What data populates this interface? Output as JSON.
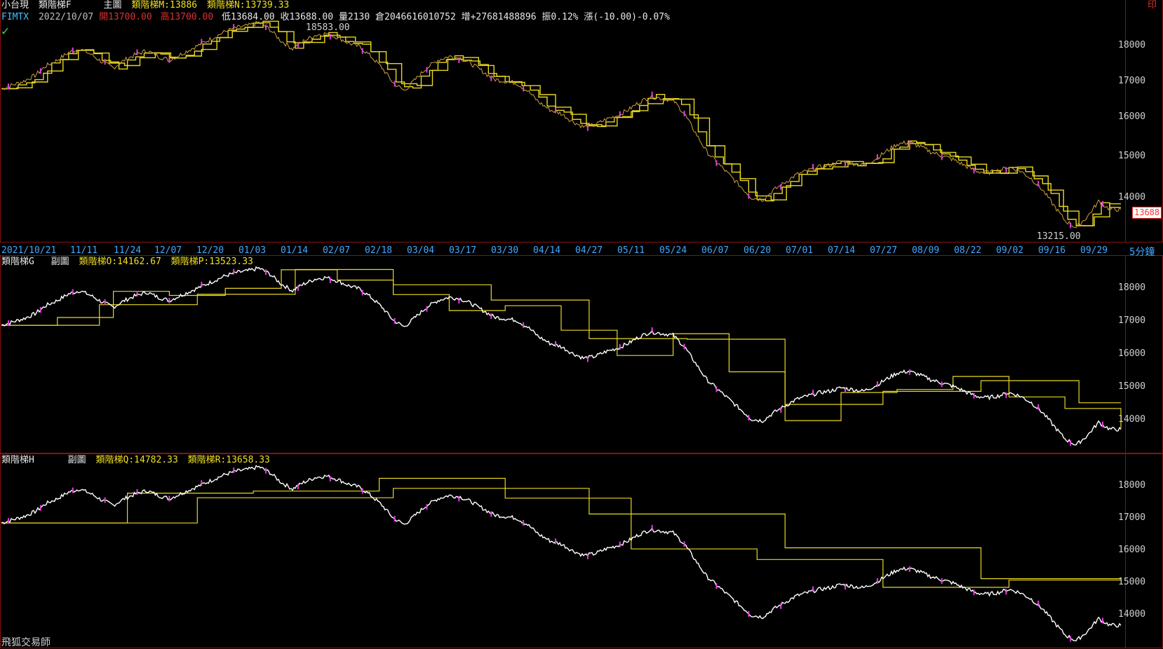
{
  "main": {
    "symbol": "小台現",
    "indicator": "類階梯F",
    "panel_label": "主圖",
    "ind_m_label": "類階梯M:13886",
    "ind_n_label": "類階梯N:13739.33",
    "code": "FIMTX",
    "date": "2022/10/07",
    "open": "開13700.00",
    "high": "高13700.00",
    "low": "低13684.00",
    "close": "收13688.00",
    "volume": "量2130",
    "oi": "倉2046616010752",
    "change_inc": "增+27681488896",
    "amplitude": "振0.12%",
    "change": "漲(-10.00)-0.07%",
    "high_marker": "18583.00",
    "low_marker": "13215.00",
    "last_price_tag": "13688",
    "corner_label": "印",
    "period": "5分鐘",
    "yticks": [
      "18000",
      "17000",
      "16000",
      "15000",
      "14000"
    ]
  },
  "xaxis": {
    "labels": [
      "2021/10/21",
      "11/11",
      "11/24",
      "12/07",
      "12/20",
      "01/03",
      "01/14",
      "02/07",
      "02/18",
      "03/04",
      "03/17",
      "03/30",
      "04/14",
      "04/27",
      "05/11",
      "05/24",
      "06/07",
      "06/20",
      "07/01",
      "07/14",
      "07/27",
      "08/09",
      "08/22",
      "09/02",
      "09/16",
      "09/29"
    ]
  },
  "sub1": {
    "indicator": "類階梯G",
    "panel_label": "副圖",
    "ind_o_label": "類階梯O:14162.67",
    "ind_p_label": "類階梯P:13523.33",
    "yticks": [
      "18000",
      "17000",
      "16000",
      "15000",
      "14000"
    ]
  },
  "sub2": {
    "indicator": "類階梯H",
    "panel_label": "副圖",
    "ind_q_label": "類階梯Q:14782.33",
    "ind_r_label": "類階梯R:13658.33",
    "yticks": [
      "18000",
      "17000",
      "16000",
      "15000",
      "14000"
    ]
  },
  "footer": {
    "app_name": "飛狐交易師"
  },
  "colors": {
    "price": "#ffffff",
    "indicator": "#e8d820",
    "border": "#8b1010",
    "axis_text": "#40a8ff",
    "down": "#ff3030"
  },
  "chart_data": {
    "type": "line",
    "y_range": [
      13215,
      18583
    ],
    "series": [
      {
        "name": "收",
        "values": [
          16850,
          16950,
          17050,
          17200,
          17450,
          17600,
          17800,
          17900,
          17750,
          17550,
          17400,
          17600,
          17750,
          17850,
          17700,
          17600,
          17750,
          17900,
          18050,
          18200,
          18350,
          18450,
          18500,
          18583,
          18400,
          18100,
          17900,
          18100,
          18250,
          18300,
          18200,
          18050,
          17950,
          17700,
          17400,
          17000,
          16800,
          17100,
          17400,
          17600,
          17700,
          17650,
          17500,
          17300,
          17100,
          17050,
          17000,
          16800,
          16500,
          16300,
          16200,
          16000,
          15850,
          15900,
          16050,
          16150,
          16300,
          16500,
          16650,
          16600,
          16550,
          16200,
          15700,
          15200,
          14900,
          14600,
          14300,
          14000,
          13950,
          14200,
          14400,
          14600,
          14700,
          14800,
          14850,
          14950,
          14900,
          14850,
          15000,
          15200,
          15400,
          15450,
          15350,
          15200,
          15100,
          15000,
          14850,
          14700,
          14650,
          14700,
          14800,
          14700,
          14500,
          14200,
          13800,
          13400,
          13215,
          13500,
          13900,
          13700,
          13688
        ]
      }
    ]
  }
}
